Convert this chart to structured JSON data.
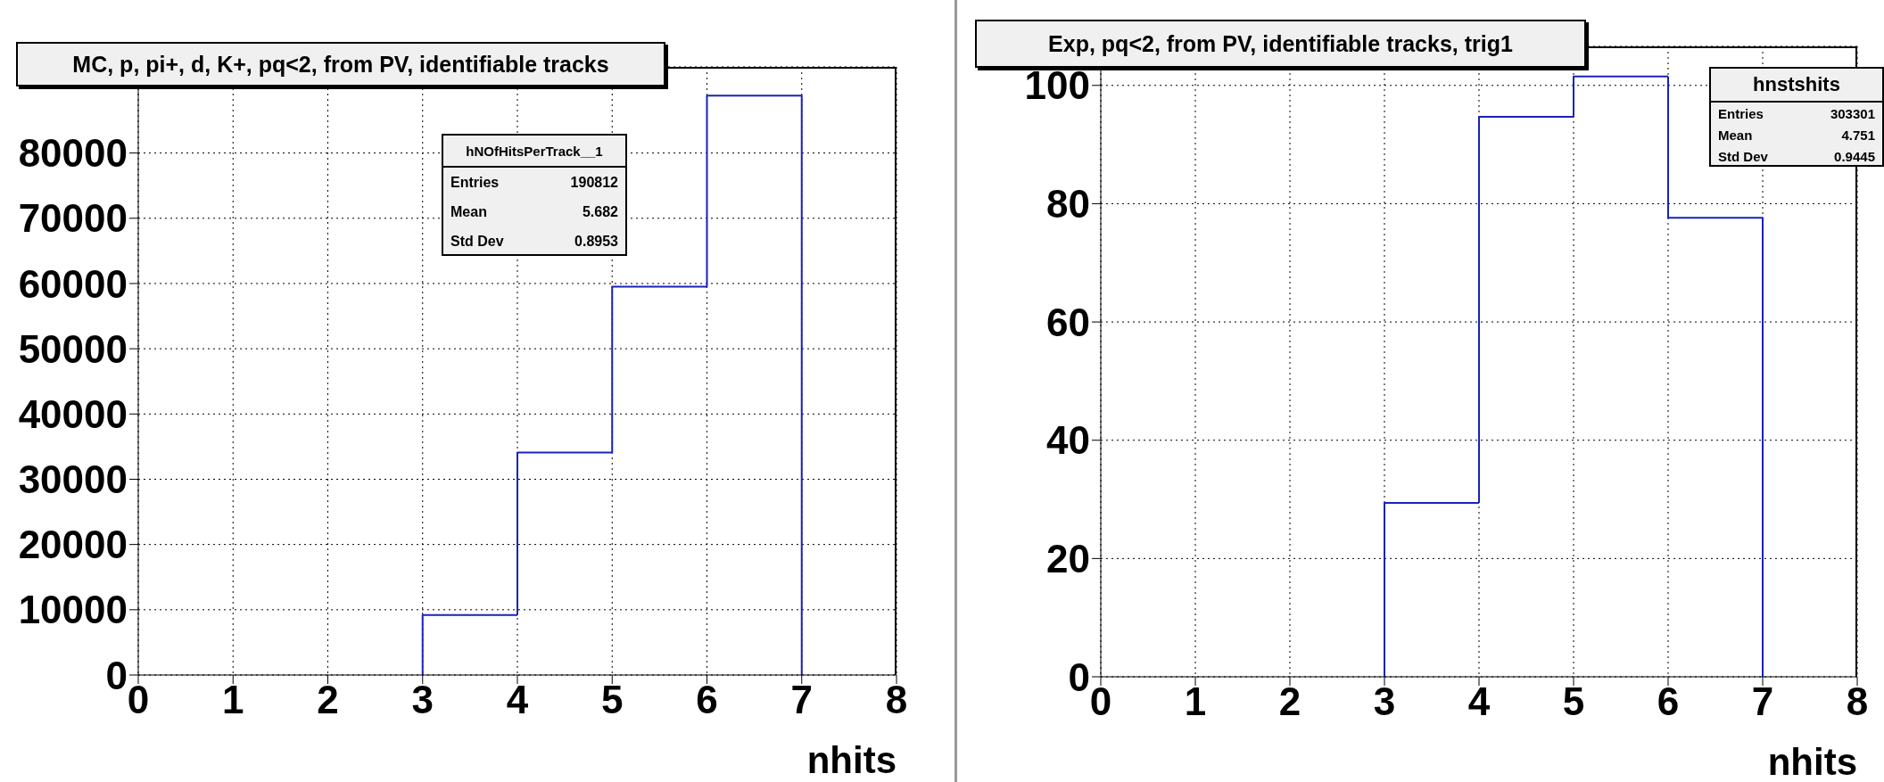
{
  "chart_data": [
    {
      "type": "histogram",
      "title": "MC, p, pi+, d, K+, pq<2, from PV, identifiable tracks",
      "xlabel": "nhits",
      "bins": [
        3,
        4,
        5,
        6,
        7
      ],
      "values": [
        9200,
        34100,
        59500,
        88800
      ],
      "color": "#1a22b8",
      "xlim": [
        0,
        8
      ],
      "ylim": [
        0,
        93200
      ],
      "xticks": [
        0,
        1,
        2,
        3,
        4,
        5,
        6,
        7,
        8
      ],
      "yticks": [
        0,
        10000,
        20000,
        30000,
        40000,
        50000,
        60000,
        70000,
        80000
      ],
      "grid": true,
      "annotations": [
        "hNOfHitsPerTrack__1",
        "Entries 190812",
        "Mean 5.682",
        "Std Dev 0.8953"
      ]
    },
    {
      "type": "histogram",
      "title": "Exp, pq<2, from PV, identifiable tracks, trig1",
      "xlabel": "nhits",
      "bins": [
        3,
        4,
        5,
        6,
        7
      ],
      "values": [
        29.4,
        94.7,
        101.5,
        77.6
      ],
      "color": "#1a22b8",
      "xlim": [
        0,
        8
      ],
      "ylim": [
        0,
        106.6
      ],
      "xticks": [
        0,
        1,
        2,
        3,
        4,
        5,
        6,
        7,
        8
      ],
      "yticks": [
        0,
        20,
        40,
        60,
        80,
        100
      ],
      "grid": true,
      "annotations": [
        "hnstshits",
        "Entries 303301",
        "Mean 4.751",
        "Std Dev 0.9445"
      ]
    }
  ]
}
